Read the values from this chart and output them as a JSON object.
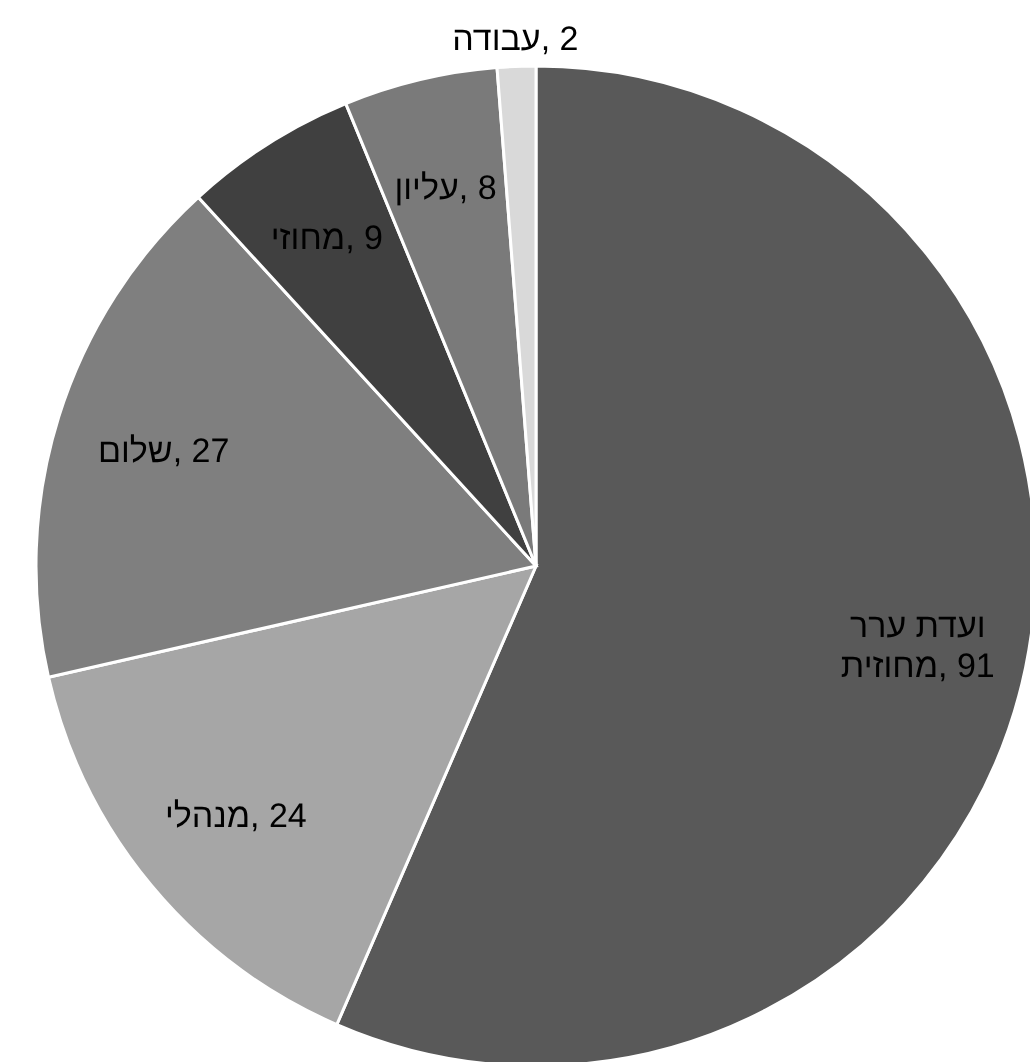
{
  "chart_data": {
    "type": "pie",
    "categories": [
      "ועדת ערר מחוזית",
      "מנהלי",
      "שלום",
      "מחוזי",
      "עליון",
      "עבודה"
    ],
    "values": [
      91,
      24,
      27,
      9,
      8,
      2
    ],
    "value_labels": [
      ", 91",
      ", 24",
      ", 27",
      ", 9",
      ", 8",
      ", 2"
    ],
    "colors": [
      "#595959",
      "#a6a6a6",
      "#7f7f7f",
      "#404040",
      "#7a7a7a",
      "#d9d9d9"
    ]
  }
}
